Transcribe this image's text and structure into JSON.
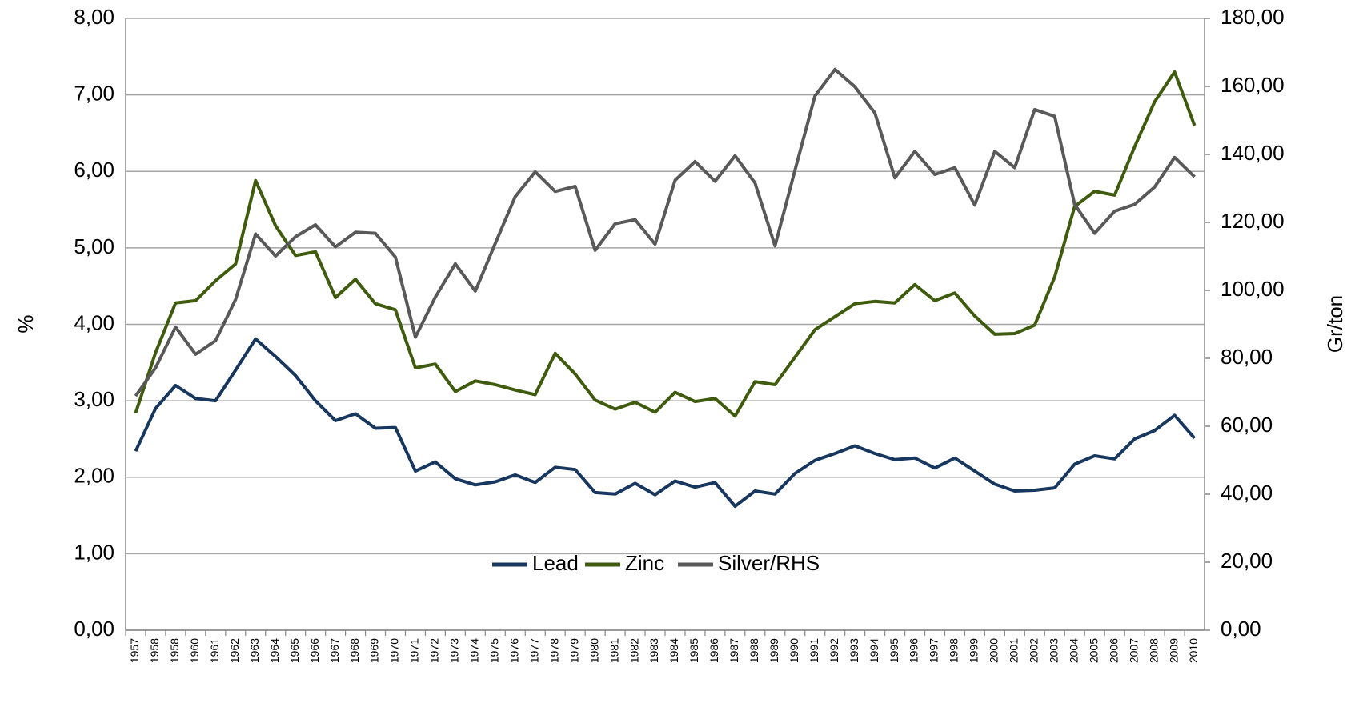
{
  "chart_data": {
    "type": "line",
    "categories": [
      "1957",
      "1958",
      "1958",
      "1960",
      "1961",
      "1962",
      "1963",
      "1964",
      "1965",
      "1966",
      "1967",
      "1968",
      "1969",
      "1970",
      "1971",
      "1972",
      "1973",
      "1974",
      "1975",
      "1976",
      "1977",
      "1978",
      "1979",
      "1980",
      "1981",
      "1982",
      "1983",
      "1984",
      "1985",
      "1986",
      "1987",
      "1988",
      "1989",
      "1990",
      "1991",
      "1992",
      "1993",
      "1994",
      "1995",
      "1996",
      "1997",
      "1998",
      "1999",
      "2000",
      "2001",
      "2002",
      "2003",
      "2004",
      "2005",
      "2006",
      "2007",
      "2008",
      "2009",
      "2010"
    ],
    "series": [
      {
        "name": "Lead",
        "color": "#17375e",
        "values": [
          2.34,
          2.9,
          3.2,
          3.03,
          3.0,
          3.4,
          3.81,
          3.58,
          3.33,
          3.0,
          2.74,
          2.83,
          2.64,
          2.65,
          2.08,
          2.2,
          1.98,
          1.9,
          1.94,
          2.03,
          1.93,
          2.13,
          2.1,
          1.8,
          1.78,
          1.92,
          1.77,
          1.95,
          1.87,
          1.93,
          1.62,
          1.82,
          1.78,
          2.05,
          2.22,
          2.31,
          2.41,
          2.31,
          2.23,
          2.25,
          2.12,
          2.25,
          2.08,
          1.91,
          1.82,
          1.83,
          1.86,
          2.17,
          2.28,
          2.24,
          2.5,
          2.61,
          2.81,
          2.51
        ]
      },
      {
        "name": "Zinc",
        "color": "#3f5b0e",
        "values": [
          2.84,
          3.63,
          4.28,
          4.31,
          4.57,
          4.79,
          5.88,
          5.29,
          4.9,
          4.95,
          4.35,
          4.59,
          4.27,
          4.19,
          3.43,
          3.48,
          3.12,
          3.26,
          3.21,
          3.14,
          3.08,
          3.62,
          3.35,
          3.01,
          2.89,
          2.98,
          2.85,
          3.11,
          2.99,
          3.03,
          2.8,
          3.25,
          3.21,
          3.57,
          3.93,
          4.1,
          4.27,
          4.3,
          4.28,
          4.52,
          4.31,
          4.41,
          4.11,
          3.87,
          3.88,
          3.99,
          4.62,
          5.54,
          5.74,
          5.69,
          6.32,
          6.91,
          7.3,
          6.6
        ]
      },
      {
        "name": "Silver/RHS",
        "color": "#595959",
        "axis": "y2",
        "values": [
          68.9,
          77.2,
          89.2,
          81.2,
          85.2,
          97.3,
          116.6,
          110.1,
          115.8,
          119.3,
          112.8,
          117.1,
          116.8,
          109.8,
          86.2,
          98.0,
          107.8,
          99.8,
          113.8,
          127.6,
          134.9,
          129.1,
          130.6,
          111.8,
          119.6,
          120.8,
          113.6,
          132.4,
          137.9,
          132.1,
          139.6,
          131.6,
          113.1,
          135.4,
          157.2,
          165.0,
          159.9,
          152.2,
          133.1,
          140.9,
          134.1,
          136.1,
          125.1,
          140.9,
          136.1,
          153.2,
          151.2,
          125.3,
          116.8,
          123.3,
          125.3,
          130.4,
          139.1,
          133.4
        ]
      }
    ],
    "ylabel": "%",
    "y2label": "Gr/ton",
    "ylim": [
      0,
      8
    ],
    "yticks": [
      {
        "value": 0,
        "label": "0,00"
      },
      {
        "value": 1,
        "label": "1,00"
      },
      {
        "value": 2,
        "label": "2,00"
      },
      {
        "value": 3,
        "label": "3,00"
      },
      {
        "value": 4,
        "label": "4,00"
      },
      {
        "value": 5,
        "label": "5,00"
      },
      {
        "value": 6,
        "label": "6,00"
      },
      {
        "value": 7,
        "label": "7,00"
      },
      {
        "value": 8,
        "label": "8,00"
      }
    ],
    "y2lim": [
      0,
      180
    ],
    "y2ticks": [
      {
        "value": 0,
        "label": "0,00"
      },
      {
        "value": 20,
        "label": "20,00"
      },
      {
        "value": 40,
        "label": "40,00"
      },
      {
        "value": 60,
        "label": "60,00"
      },
      {
        "value": 80,
        "label": "80,00"
      },
      {
        "value": 100,
        "label": "100,00"
      },
      {
        "value": 120,
        "label": "120,00"
      },
      {
        "value": 140,
        "label": "140,00"
      },
      {
        "value": 160,
        "label": "160,00"
      },
      {
        "value": 180,
        "label": "180,00"
      }
    ],
    "grid": true,
    "legend": "center"
  }
}
